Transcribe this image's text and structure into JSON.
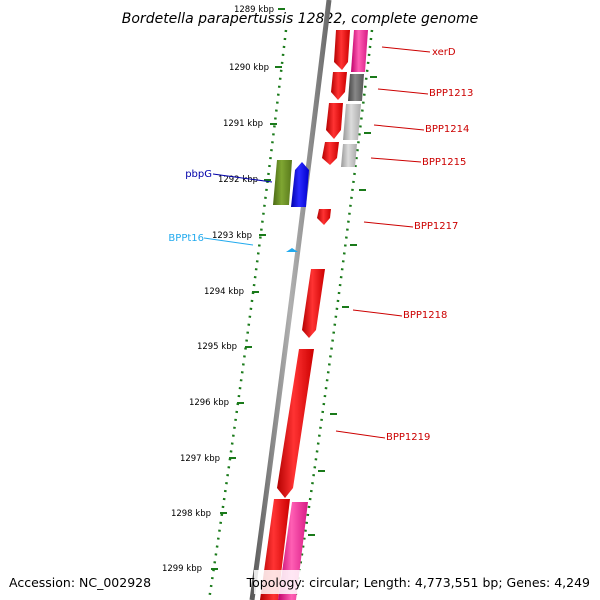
{
  "title": "Bordetella parapertussis 12822, complete genome",
  "footer": {
    "accession": "Accession: NC_002928",
    "topology": "Topology: circular; Length: 4,773,551 bp; Genes: 4,249"
  },
  "colors": {
    "red": "#ff0000",
    "magenta": "#ff2a9a",
    "blue": "#0000ff",
    "olive": "#6b8e23",
    "cyan": "#22aaee",
    "gray_dark": "#666666",
    "gray_light": "#bbbbbb",
    "tick_green": "#1a7a1a",
    "backbone": "#808080"
  },
  "scale": {
    "unit_label": "kbp",
    "ticks": [
      "1289 kbp",
      "1290 kbp",
      "1291 kbp",
      "1292 kbp",
      "1293 kbp",
      "1294 kbp",
      "1295 kbp",
      "1296 kbp",
      "1297 kbp",
      "1298 kbp",
      "1299 kbp"
    ]
  },
  "gene_labels": {
    "xerD": "xerD",
    "BPP1213": "BPP1213",
    "BPP1214": "BPP1214",
    "BPP1215": "BPP1215",
    "pbpG": "pbpG",
    "BPP1217": "BPP1217",
    "BPPt16": "BPPt16",
    "BPP1218": "BPP1218",
    "BPP1219": "BPP1219"
  }
}
